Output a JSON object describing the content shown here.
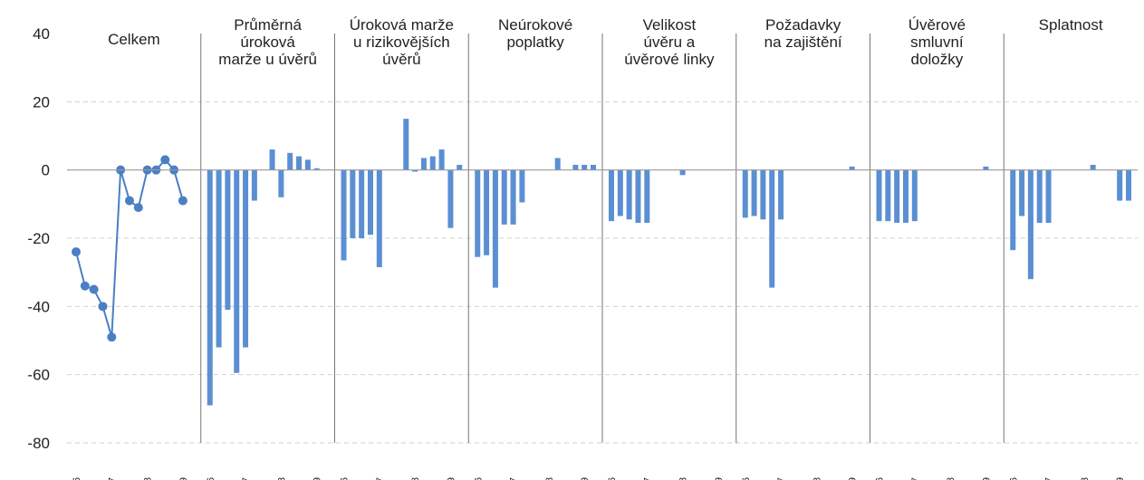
{
  "chart_data": {
    "type": "panels",
    "ylim": [
      -80,
      40
    ],
    "yticks": [
      -80,
      -60,
      -40,
      -20,
      0,
      20,
      40
    ],
    "grid": true,
    "color": "#5b8fd3",
    "categories": [
      "I/16",
      null,
      null,
      null,
      "I/17",
      null,
      null,
      null,
      "I/18",
      null,
      null,
      null,
      "I/19",
      null
    ],
    "panels": [
      {
        "type": "line",
        "title": [
          "Celkem"
        ],
        "values": [
          -24,
          -34,
          -35,
          -40,
          -49,
          0,
          -9,
          -11,
          0,
          0,
          3,
          0,
          -9,
          null
        ]
      },
      {
        "type": "bar",
        "title": [
          "Průměrná",
          "úroková",
          "marže u úvěrů"
        ],
        "values": [
          -69,
          -52,
          -41,
          -59.5,
          -52,
          -9,
          0,
          6,
          -8,
          5,
          4,
          3,
          0.5,
          0
        ]
      },
      {
        "type": "bar",
        "title": [
          "Úroková marže",
          "u rizikovějších",
          "úvěrů"
        ],
        "values": [
          -26.5,
          -20,
          -20,
          -19,
          -28.5,
          0,
          0,
          15,
          -0.5,
          3.5,
          4,
          6,
          -17,
          1.5
        ]
      },
      {
        "type": "bar",
        "title": [
          "Neúrokové",
          "poplatky"
        ],
        "values": [
          -25.5,
          -25,
          -34.5,
          -16,
          -16,
          -9.5,
          0,
          0,
          0,
          3.5,
          0,
          1.5,
          1.5,
          1.5
        ]
      },
      {
        "type": "bar",
        "title": [
          "Velikost",
          "úvěru a",
          "úvěrové linky"
        ],
        "values": [
          -15,
          -13.5,
          -14.5,
          -15.5,
          -15.5,
          0,
          0,
          0,
          -1.5,
          0,
          0,
          0,
          0,
          0
        ]
      },
      {
        "type": "bar",
        "title": [
          "Požadavky",
          "na zajištění"
        ],
        "values": [
          -14,
          -13.5,
          -14.5,
          -34.5,
          -14.5,
          0,
          0,
          0,
          0,
          0,
          0,
          0,
          1,
          0
        ]
      },
      {
        "type": "bar",
        "title": [
          "Úvěrové",
          "smluvní",
          "doložky"
        ],
        "values": [
          -15,
          -15,
          -15.5,
          -15.5,
          -15,
          0,
          0,
          0,
          0,
          0,
          0,
          0,
          1,
          0
        ]
      },
      {
        "type": "bar",
        "title": [
          "Splatnost"
        ],
        "values": [
          -23.5,
          -13.5,
          -32,
          -15.5,
          -15.5,
          0,
          0,
          0,
          0,
          1.5,
          0,
          0,
          -9,
          -9
        ]
      }
    ]
  }
}
